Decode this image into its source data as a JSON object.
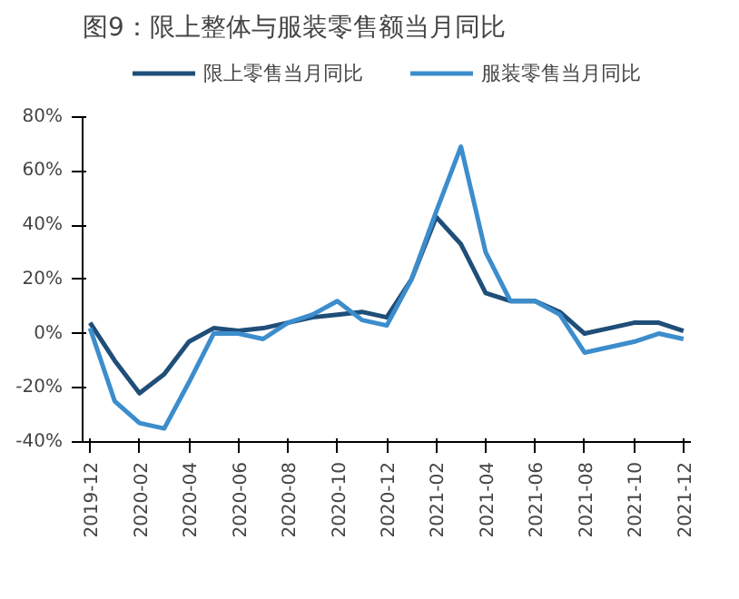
{
  "chart_data": {
    "type": "line",
    "title": "图9：限上整体与服装零售额当月同比",
    "categories": [
      "2019-12",
      null,
      "2020-02",
      null,
      "2020-04",
      null,
      "2020-06",
      null,
      "2020-08",
      null,
      "2020-10",
      null,
      "2020-12",
      null,
      "2021-02",
      null,
      "2021-04",
      null,
      "2021-06",
      null,
      "2021-08",
      null,
      "2021-10",
      null,
      "2021-12"
    ],
    "series": [
      {
        "name": "限上零售当月同比",
        "color": "#1f4e79",
        "values": [
          4,
          -10,
          -22,
          -15,
          -3,
          2,
          1,
          2,
          4,
          6,
          7,
          8,
          6,
          20,
          43,
          33,
          15,
          12,
          12,
          8,
          0,
          2,
          4,
          4,
          1
        ]
      },
      {
        "name": "服装零售当月同比",
        "color": "#3c8dcc",
        "values": [
          2,
          -25,
          -33,
          -35,
          -18,
          0,
          0,
          -2,
          4,
          7,
          12,
          5,
          3,
          20,
          45,
          69,
          30,
          12,
          12,
          7,
          -7,
          -5,
          -3,
          0,
          -2
        ]
      }
    ],
    "ylim": [
      -40,
      80
    ],
    "yticks": [
      {
        "value": -40,
        "label": "-40%"
      },
      {
        "value": -20,
        "label": "-20%"
      },
      {
        "value": 0,
        "label": "0%"
      },
      {
        "value": 20,
        "label": "20%"
      },
      {
        "value": 40,
        "label": "40%"
      },
      {
        "value": 60,
        "label": "60%"
      },
      {
        "value": 80,
        "label": "80%"
      }
    ],
    "grid": false,
    "legend": "top",
    "marker": "none",
    "line_style": "solid"
  }
}
